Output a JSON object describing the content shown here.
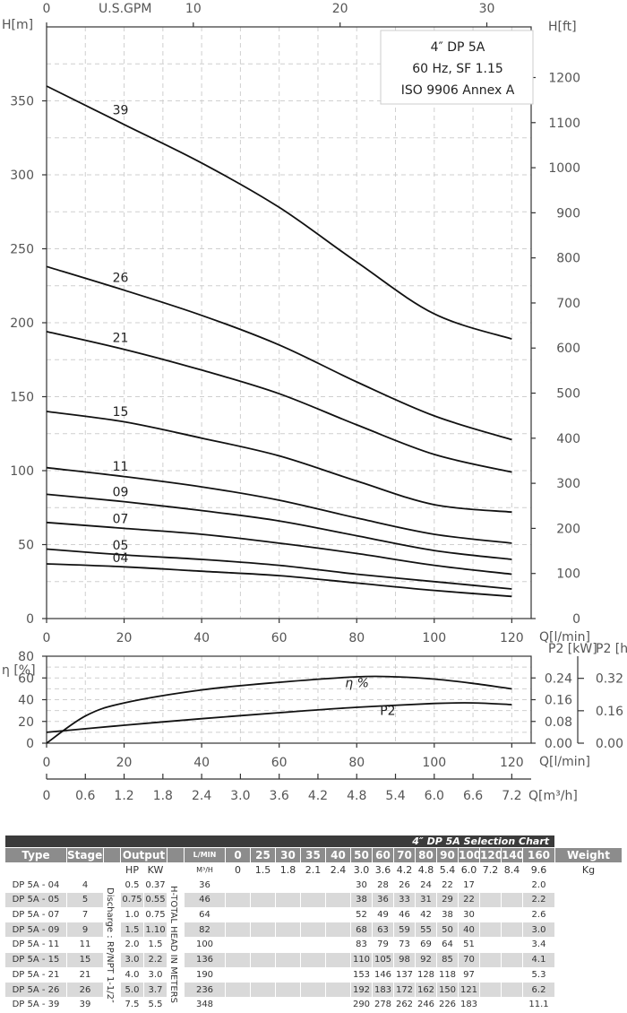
{
  "chart_data": [
    {
      "type": "line",
      "title": [
        "4″ DP 5A",
        "60 Hz, SF 1.15",
        "ISO 9906 Annex A"
      ],
      "ylabel": "H[m]",
      "ylabel_right": "H[ft]",
      "xlabel": "Q[l/min]",
      "xlabel_top": "U.S.GPM",
      "xlim": [
        0,
        125
      ],
      "ylim": [
        0,
        400
      ],
      "x_ticks": [
        0,
        20,
        40,
        60,
        80,
        100,
        120
      ],
      "x_tick_labels": [
        "0",
        "20",
        "40",
        "60",
        "80",
        "100",
        "120"
      ],
      "y_ticks": [
        0,
        50,
        100,
        150,
        200,
        250,
        300,
        350
      ],
      "y_tick_labels": [
        "0",
        "50",
        "100",
        "150",
        "200",
        "250",
        "300",
        "350"
      ],
      "y_ft_ticks": [
        0,
        100,
        200,
        300,
        400,
        500,
        600,
        700,
        800,
        900,
        1000,
        1100,
        1200
      ],
      "y_ft_tick_labels": [
        "0",
        "100",
        "200",
        "300",
        "400",
        "500",
        "600",
        "700",
        "800",
        "900",
        "1000",
        "1100",
        "1200"
      ],
      "gpm_ticks": [
        0,
        10,
        20,
        30
      ],
      "gpm_tick_labels": [
        "0",
        "10",
        "20",
        "30"
      ],
      "series": [
        {
          "name": "39",
          "x": [
            0,
            20,
            40,
            60,
            80,
            100,
            120
          ],
          "values": [
            360,
            334,
            308,
            278,
            241,
            206,
            189
          ]
        },
        {
          "name": "26",
          "x": [
            0,
            20,
            40,
            60,
            80,
            100,
            120
          ],
          "values": [
            238,
            222,
            205,
            185,
            160,
            137,
            121
          ]
        },
        {
          "name": "21",
          "x": [
            0,
            20,
            40,
            60,
            80,
            100,
            120
          ],
          "values": [
            194,
            182,
            168,
            152,
            131,
            111,
            99
          ]
        },
        {
          "name": "15",
          "x": [
            0,
            20,
            40,
            60,
            80,
            100,
            120
          ],
          "values": [
            140,
            133,
            122,
            110,
            93,
            77,
            72
          ]
        },
        {
          "name": "11",
          "x": [
            0,
            20,
            40,
            60,
            80,
            100,
            120
          ],
          "values": [
            102,
            96,
            89,
            80,
            68,
            57,
            51
          ]
        },
        {
          "name": "09",
          "x": [
            0,
            20,
            40,
            60,
            80,
            100,
            120
          ],
          "values": [
            84,
            79,
            73,
            66,
            56,
            46,
            40
          ]
        },
        {
          "name": "07",
          "x": [
            0,
            20,
            40,
            60,
            80,
            100,
            120
          ],
          "values": [
            65,
            61,
            57,
            51,
            44,
            36,
            30
          ]
        },
        {
          "name": "05",
          "x": [
            0,
            20,
            40,
            60,
            80,
            100,
            120
          ],
          "values": [
            47,
            43,
            40,
            36,
            30,
            25,
            20
          ]
        },
        {
          "name": "04",
          "x": [
            0,
            20,
            40,
            60,
            80,
            100,
            120
          ],
          "values": [
            37,
            35,
            32,
            29,
            24,
            19,
            15
          ]
        }
      ],
      "grid": true
    },
    {
      "type": "line",
      "ylabel": "η [%]",
      "ylabel_right": "P2 [kW]",
      "ylabel_right2": "P2 [hp]",
      "xlabel": "Q[l/min]",
      "xlabel2": "Q[m³/h]",
      "xlim": [
        0,
        125
      ],
      "ylim": [
        0,
        80
      ],
      "x_ticks": [
        0,
        20,
        40,
        60,
        80,
        100,
        120
      ],
      "x_tick_labels": [
        "0",
        "20",
        "40",
        "60",
        "80",
        "100",
        "120"
      ],
      "y_ticks": [
        0,
        20,
        40,
        60,
        80
      ],
      "y_tick_labels": [
        "0",
        "20",
        "40",
        "60",
        "80"
      ],
      "kw_ticks": [
        0,
        0.08,
        0.16,
        0.24
      ],
      "kw_tick_labels": [
        "0.00",
        "0.08",
        "0.16",
        "0.24"
      ],
      "hp_ticks": [
        0,
        0.16,
        0.32
      ],
      "hp_tick_labels": [
        "0.00",
        "0.16",
        "0.32"
      ],
      "m3h_ticks": [
        0,
        0.6,
        1.2,
        1.8,
        2.4,
        3.0,
        3.6,
        4.2,
        4.8,
        5.4,
        6.0,
        6.6,
        7.2
      ],
      "m3h_tick_labels": [
        "0",
        "0.6",
        "1.2",
        "1.8",
        "2.4",
        "3.0",
        "3.6",
        "4.2",
        "4.8",
        "5.4",
        "6.0",
        "6.6",
        "7.2"
      ],
      "series": [
        {
          "name": "η %",
          "x": [
            0,
            10,
            20,
            40,
            60,
            80,
            90,
            100,
            110,
            120
          ],
          "values": [
            0,
            25,
            37,
            49,
            56,
            61,
            61,
            59,
            55,
            50
          ]
        },
        {
          "name": "P2",
          "unit": "kW",
          "x": [
            0,
            20,
            40,
            60,
            80,
            100,
            110,
            120
          ],
          "values": [
            0.04,
            0.066,
            0.09,
            0.112,
            0.132,
            0.146,
            0.148,
            0.142
          ]
        }
      ],
      "grid": true
    }
  ],
  "table": {
    "title": "4″ DP 5A Selection Chart",
    "headers": {
      "type": "Type",
      "stages": "Stages",
      "output": "Output",
      "lmin": "L/MIN",
      "weight": "Weight",
      "hp": "HP",
      "kw": "KW",
      "m3h": "M³/H",
      "kg": "Kg"
    },
    "flow_lmin": [
      "0",
      "25",
      "30",
      "35",
      "40",
      "50",
      "60",
      "70",
      "80",
      "90",
      "100",
      "120",
      "140",
      "160"
    ],
    "flow_m3h": [
      "0",
      "1.5",
      "1.8",
      "2.1",
      "2.4",
      "3.0",
      "3.6",
      "4.2",
      "4.8",
      "5.4",
      "6.0",
      "7.2",
      "8.4",
      "9.6"
    ],
    "discharge_label": "Discharge : RP/NPT 1-1/2″",
    "head_label": "H-TOTAL HEAD IN METERS",
    "rows": [
      {
        "type": "DP 5A - 04",
        "stages": "4",
        "hp": "0.5",
        "kw": "0.37",
        "heads": [
          "36",
          "",
          "",
          "",
          "",
          "",
          "30",
          "28",
          "26",
          "24",
          "22",
          "17",
          "",
          ""
        ],
        "weight": "2.0"
      },
      {
        "type": "DP 5A - 05",
        "stages": "5",
        "hp": "0.75",
        "kw": "0.55",
        "heads": [
          "46",
          "",
          "",
          "",
          "",
          "",
          "38",
          "36",
          "33",
          "31",
          "29",
          "22",
          "",
          ""
        ],
        "weight": "2.2"
      },
      {
        "type": "DP 5A - 07",
        "stages": "7",
        "hp": "1.0",
        "kw": "0.75",
        "heads": [
          "64",
          "",
          "",
          "",
          "",
          "",
          "52",
          "49",
          "46",
          "42",
          "38",
          "30",
          "",
          ""
        ],
        "weight": "2.6"
      },
      {
        "type": "DP 5A - 09",
        "stages": "9",
        "hp": "1.5",
        "kw": "1.10",
        "heads": [
          "82",
          "",
          "",
          "",
          "",
          "",
          "68",
          "63",
          "59",
          "55",
          "50",
          "40",
          "",
          ""
        ],
        "weight": "3.0"
      },
      {
        "type": "DP 5A - 11",
        "stages": "11",
        "hp": "2.0",
        "kw": "1.5",
        "heads": [
          "100",
          "",
          "",
          "",
          "",
          "",
          "83",
          "79",
          "73",
          "69",
          "64",
          "51",
          "",
          ""
        ],
        "weight": "3.4"
      },
      {
        "type": "DP 5A - 15",
        "stages": "15",
        "hp": "3.0",
        "kw": "2.2",
        "heads": [
          "136",
          "",
          "",
          "",
          "",
          "",
          "110",
          "105",
          "98",
          "92",
          "85",
          "70",
          "",
          ""
        ],
        "weight": "4.1"
      },
      {
        "type": "DP 5A - 21",
        "stages": "21",
        "hp": "4.0",
        "kw": "3.0",
        "heads": [
          "190",
          "",
          "",
          "",
          "",
          "",
          "153",
          "146",
          "137",
          "128",
          "118",
          "97",
          "",
          ""
        ],
        "weight": "5.3"
      },
      {
        "type": "DP 5A - 26",
        "stages": "26",
        "hp": "5.0",
        "kw": "3.7",
        "heads": [
          "236",
          "",
          "",
          "",
          "",
          "",
          "192",
          "183",
          "172",
          "162",
          "150",
          "121",
          "",
          ""
        ],
        "weight": "6.2"
      },
      {
        "type": "DP 5A - 39",
        "stages": "39",
        "hp": "7.5",
        "kw": "5.5",
        "heads": [
          "348",
          "",
          "",
          "",
          "",
          "",
          "290",
          "278",
          "262",
          "246",
          "226",
          "183",
          "",
          ""
        ],
        "weight": "11.1"
      }
    ]
  }
}
